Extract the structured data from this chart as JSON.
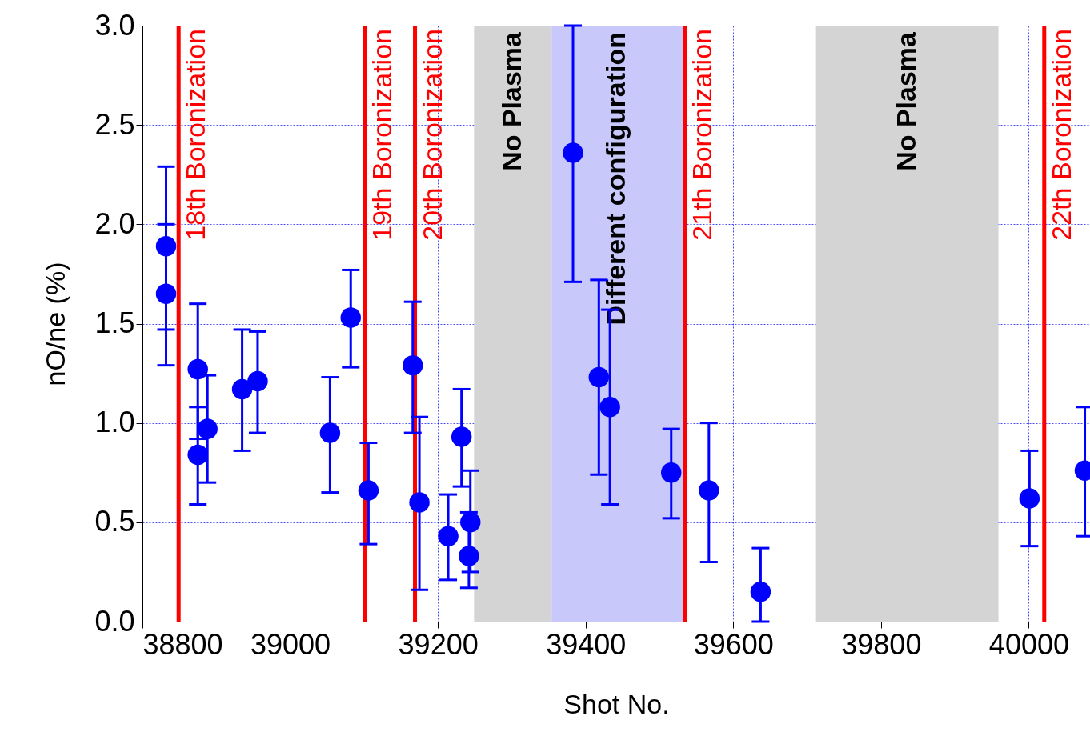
{
  "chart_data": {
    "type": "scatter",
    "xlabel": "Shot No.",
    "ylabel": "nO/ne (%)",
    "xlim": [
      38800,
      40083
    ],
    "ylim": [
      0,
      3
    ],
    "xticks": [
      38800,
      39000,
      39200,
      39400,
      39600,
      39800,
      40000
    ],
    "yticks": [
      {
        "value": 0,
        "label": "0.0"
      },
      {
        "value": 0.5,
        "label": "0.5"
      },
      {
        "value": 1,
        "label": "1.0"
      },
      {
        "value": 1.5,
        "label": "1.5"
      },
      {
        "value": 2,
        "label": "2.0"
      },
      {
        "value": 2.5,
        "label": "2.5"
      },
      {
        "value": 3,
        "label": "3.0"
      }
    ],
    "grid": true,
    "marker": "circle",
    "series": [
      {
        "color": "#0000ff",
        "x": [
          38832,
          38832,
          38875,
          38875,
          38888,
          38935,
          38956,
          39054,
          39082,
          39106,
          39166,
          39175,
          39214,
          39232,
          39244,
          39242,
          39383,
          39418,
          39433,
          39516,
          39567,
          39637,
          40001,
          40076
        ],
        "values": [
          1.89,
          1.65,
          1.27,
          0.84,
          0.97,
          1.17,
          1.21,
          0.95,
          1.53,
          0.66,
          1.29,
          0.6,
          0.43,
          0.93,
          0.5,
          0.33,
          2.36,
          1.23,
          1.08,
          0.75,
          0.66,
          0.15,
          0.62,
          0.76
        ],
        "errors": [
          [
            1.47,
            2.29
          ],
          [
            1.29,
            2.0
          ],
          [
            0.92,
            1.6
          ],
          [
            0.59,
            1.08
          ],
          [
            0.7,
            1.24
          ],
          [
            0.86,
            1.47
          ],
          [
            0.95,
            1.46
          ],
          [
            0.65,
            1.23
          ],
          [
            1.28,
            1.77
          ],
          [
            0.39,
            0.9
          ],
          [
            0.95,
            1.61
          ],
          [
            0.16,
            1.03
          ],
          [
            0.21,
            0.64
          ],
          [
            0.68,
            1.17
          ],
          [
            0.25,
            0.76
          ],
          [
            0.17,
            0.55
          ],
          [
            1.71,
            3.0
          ],
          [
            0.74,
            1.72
          ],
          [
            0.59,
            1.57
          ],
          [
            0.52,
            0.97
          ],
          [
            0.3,
            1.0
          ],
          [
            0.0,
            0.37
          ],
          [
            0.38,
            0.86
          ],
          [
            0.43,
            1.08
          ]
        ]
      }
    ],
    "ref_lines": [
      {
        "axis": "x",
        "value": 38849,
        "label": "18th Boronization",
        "color": "#ff0000"
      },
      {
        "axis": "x",
        "value": 39101,
        "label": "19th Boronization",
        "color": "#ff0000"
      },
      {
        "axis": "x",
        "value": 39169,
        "label": "20th Boronization",
        "color": "#ff0000"
      },
      {
        "axis": "x",
        "value": 39535,
        "label": "21th Boronization",
        "color": "#ff0000"
      },
      {
        "axis": "x",
        "value": 40021,
        "label": "22th Boronization",
        "color": "#ff0000"
      }
    ],
    "bands": [
      {
        "axis": "x",
        "from": 39249,
        "to": 39354,
        "label": "No Plasma",
        "color": "#d4d4d4"
      },
      {
        "axis": "x",
        "from": 39354,
        "to": 39532,
        "label": "Different configuration",
        "color": "#c8c8fa"
      },
      {
        "axis": "x",
        "from": 39712,
        "to": 39959,
        "label": "No Plasma",
        "color": "#d4d4d4"
      }
    ]
  }
}
